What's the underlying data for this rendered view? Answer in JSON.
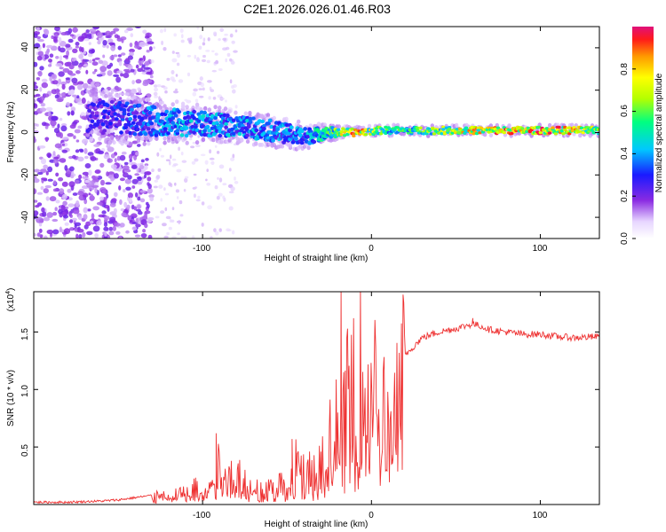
{
  "title": "C2E1.2026.026.01.46.R03",
  "chart_data": [
    {
      "type": "heatmap",
      "xlabel": "Height of straight line (km)",
      "ylabel": "Frequency (Hz)",
      "xlim": [
        -200,
        135
      ],
      "ylim": [
        -50,
        50
      ],
      "xticks": [
        -100,
        0,
        100
      ],
      "xtick_labels": [
        "-100",
        "0",
        "100"
      ],
      "yticks": [
        -40,
        -20,
        0,
        20,
        40
      ],
      "ytick_labels": [
        "-40",
        "-20",
        "0",
        "20",
        "40"
      ],
      "colorbar": {
        "label": "Normalized spectral amplitude",
        "range": [
          0,
          1
        ],
        "ticks": [
          0.0,
          0.2,
          0.4,
          0.6,
          0.8
        ],
        "tick_labels": [
          "0.0",
          "0.2",
          "0.4",
          "0.6",
          "0.8"
        ]
      },
      "ridge": [
        {
          "x": -165,
          "center": 8,
          "spread": 10,
          "amp": 0.25
        },
        {
          "x": -140,
          "center": 6,
          "spread": 9,
          "amp": 0.35
        },
        {
          "x": -120,
          "center": 5,
          "spread": 8,
          "amp": 0.4
        },
        {
          "x": -100,
          "center": 4,
          "spread": 7,
          "amp": 0.42
        },
        {
          "x": -80,
          "center": 3,
          "spread": 6,
          "amp": 0.42
        },
        {
          "x": -60,
          "center": 1,
          "spread": 6,
          "amp": 0.4
        },
        {
          "x": -40,
          "center": -2,
          "spread": 5,
          "amp": 0.4
        },
        {
          "x": -25,
          "center": 0,
          "spread": 3,
          "amp": 0.55
        },
        {
          "x": -10,
          "center": 0,
          "spread": 2,
          "amp": 0.9
        },
        {
          "x": 5,
          "center": 1,
          "spread": 2,
          "amp": 0.6
        },
        {
          "x": 20,
          "center": 1,
          "spread": 2,
          "amp": 0.55
        },
        {
          "x": 50,
          "center": 1,
          "spread": 2,
          "amp": 0.75
        },
        {
          "x": 80,
          "center": 1,
          "spread": 2,
          "amp": 0.85
        },
        {
          "x": 110,
          "center": 1,
          "spread": 2,
          "amp": 0.9
        },
        {
          "x": 135,
          "center": 1,
          "spread": 2,
          "amp": 0.7
        }
      ]
    },
    {
      "type": "line",
      "xlabel": "Height of straight line (km)",
      "ylabel": "SNR (10 * v/v)",
      "multiplier_label": "(x10",
      "multiplier_exp": "4",
      "multiplier_close": ")",
      "xlim": [
        -200,
        135
      ],
      "ylim": [
        0,
        1.85
      ],
      "xticks": [
        -100,
        0,
        100
      ],
      "xtick_labels": [
        "-100",
        "0",
        "100"
      ],
      "yticks": [
        0.5,
        1.0,
        1.5
      ],
      "ytick_labels": [
        "0.5",
        "1.0",
        "1.5"
      ],
      "color": "#ee3030",
      "series": [
        {
          "name": "SNR",
          "x": [
            -200,
            -180,
            -160,
            -150,
            -140,
            -130,
            -120,
            -110,
            -100,
            -95,
            -90,
            -85,
            -80,
            -75,
            -70,
            -65,
            -60,
            -55,
            -50,
            -45,
            -40,
            -35,
            -30,
            -25,
            -22,
            -20,
            -18,
            -16,
            -14,
            -12,
            -10,
            -8,
            -5,
            0,
            5,
            10,
            13,
            15,
            20,
            30,
            40,
            50,
            55,
            60,
            65,
            70,
            80,
            90,
            100,
            110,
            120,
            135
          ],
          "y": [
            0.02,
            0.02,
            0.03,
            0.04,
            0.06,
            0.08,
            0.1,
            0.12,
            0.18,
            0.25,
            0.4,
            0.33,
            0.3,
            0.22,
            0.18,
            0.16,
            0.14,
            0.2,
            0.25,
            0.42,
            0.35,
            0.3,
            0.45,
            0.6,
            0.7,
            0.75,
            0.82,
            0.9,
            1.0,
            1.05,
            1.05,
            1.2,
            1.25,
            1.2,
            1.05,
            0.7,
            0.55,
            1.1,
            1.3,
            1.45,
            1.5,
            1.53,
            1.55,
            1.57,
            1.55,
            1.52,
            1.5,
            1.48,
            1.48,
            1.46,
            1.45,
            1.46
          ]
        }
      ],
      "spikes": [
        {
          "x": -18,
          "y": 1.87
        },
        {
          "x": -47,
          "y": 0.57
        },
        {
          "x": -92,
          "y": 0.62
        },
        {
          "x": 12,
          "y": 0.43
        },
        {
          "x": 60,
          "y": 1.62
        }
      ]
    }
  ]
}
